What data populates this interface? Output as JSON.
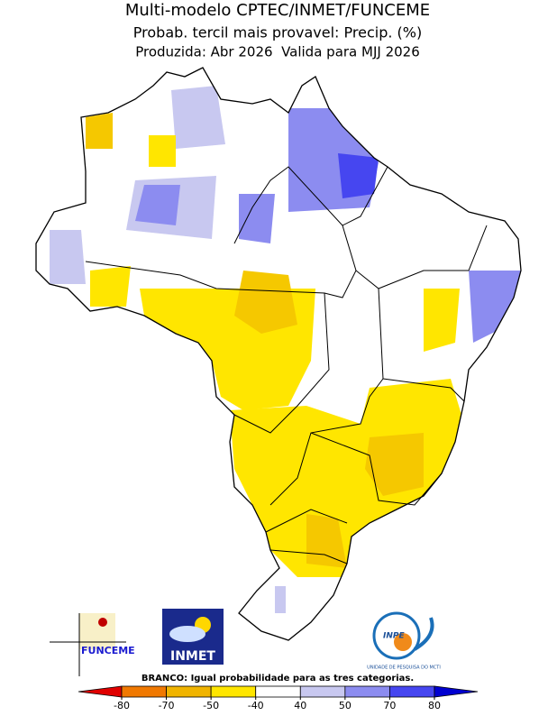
{
  "header": {
    "title": "Multi-modelo CPTEC/INMET/FUNCEME",
    "subtitle": "Probab. tercil mais provavel: Precip. (%)",
    "period": "Produzida: Abr 2026  Valida para MJJ 2026"
  },
  "legend": {
    "note": "BRANCO: Igual probabilidade para as tres categorias.",
    "ticks": [
      -80,
      -70,
      -50,
      -40,
      40,
      50,
      70,
      80
    ],
    "colors": [
      "#e00000",
      "#f07800",
      "#f0b400",
      "#ffe600",
      "#ffffff",
      "#c8c8f0",
      "#8c8cf0",
      "#4646f0",
      "#0000d0"
    ]
  },
  "logos": {
    "funceme": "FUNCEME",
    "inmet": "INMET",
    "inpe": "INPE",
    "inpe_caption": "UNIDADE DE PESQUISA DO MCTI"
  }
}
